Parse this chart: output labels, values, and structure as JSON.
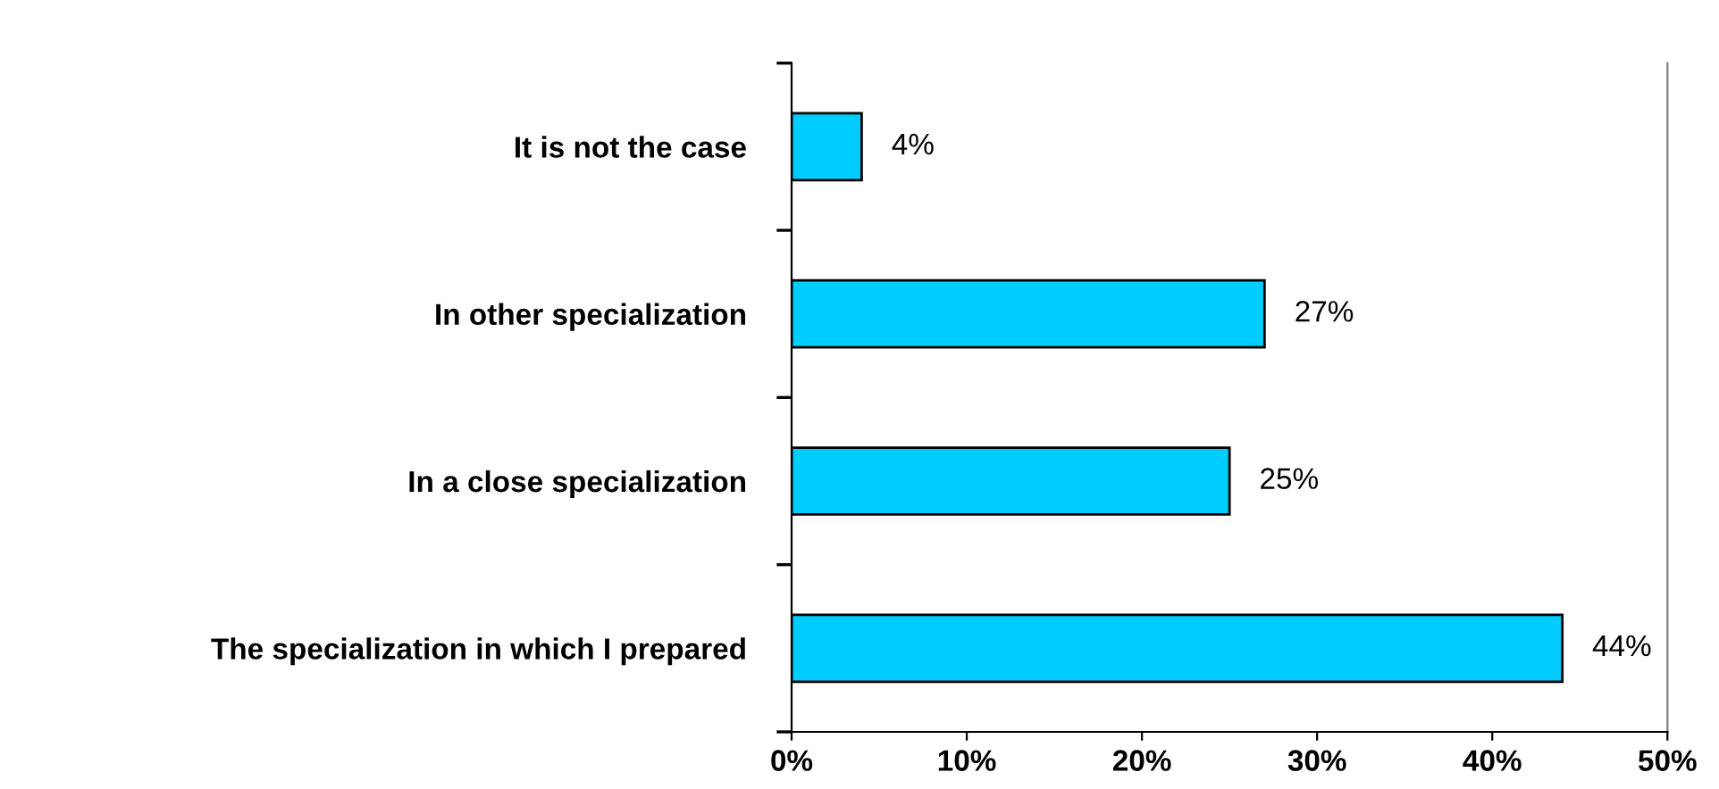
{
  "chart_data": {
    "type": "bar",
    "orientation": "horizontal",
    "categories": [
      "It is not the case",
      "In other specialization",
      "In a close specialization",
      "The specialization in which I prepared"
    ],
    "values": [
      4,
      27,
      25,
      44
    ],
    "value_labels": [
      "4%",
      "27%",
      "25%",
      "44%"
    ],
    "color": "#00ccff",
    "xlim": [
      0,
      50
    ],
    "xticks": [
      {
        "value": 0,
        "label": "0%"
      },
      {
        "value": 10,
        "label": "10%"
      },
      {
        "value": 20,
        "label": "20%"
      },
      {
        "value": 30,
        "label": "30%"
      },
      {
        "value": 40,
        "label": "40%"
      },
      {
        "value": 50,
        "label": "50%"
      }
    ],
    "grid": false,
    "legend": false
  }
}
